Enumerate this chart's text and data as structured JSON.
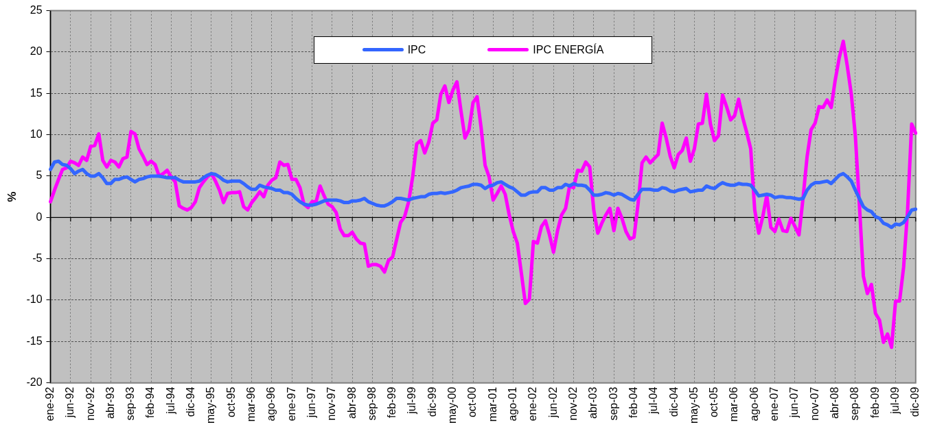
{
  "chart_data": {
    "type": "line",
    "ylabel": "%",
    "categories": [
      "ene-92",
      null,
      null,
      null,
      null,
      "jun-92",
      null,
      null,
      null,
      null,
      "nov-92",
      null,
      null,
      null,
      null,
      "abr-93",
      null,
      null,
      null,
      null,
      "sep-93",
      null,
      null,
      null,
      null,
      "feb-94",
      null,
      null,
      null,
      null,
      "jul-94",
      null,
      null,
      null,
      null,
      "dic-94",
      null,
      null,
      null,
      null,
      "may-95",
      null,
      null,
      null,
      null,
      "oct-95",
      null,
      null,
      null,
      null,
      "mar-96",
      null,
      null,
      null,
      null,
      "ago-96",
      null,
      null,
      null,
      null,
      "ene-97",
      null,
      null,
      null,
      null,
      "jun-97",
      null,
      null,
      null,
      null,
      "nov-97",
      null,
      null,
      null,
      null,
      "abr-98",
      null,
      null,
      null,
      null,
      "sep-98",
      null,
      null,
      null,
      null,
      "feb-99",
      null,
      null,
      null,
      null,
      "jul-99",
      null,
      null,
      null,
      null,
      "dic-99",
      null,
      null,
      null,
      null,
      "may-00",
      null,
      null,
      null,
      null,
      "oct-00",
      null,
      null,
      null,
      null,
      "mar-01",
      null,
      null,
      null,
      null,
      "ago-01",
      null,
      null,
      null,
      null,
      "ene-02",
      null,
      null,
      null,
      null,
      "jun-02",
      null,
      null,
      null,
      null,
      "nov-02",
      null,
      null,
      null,
      null,
      "abr-03",
      null,
      null,
      null,
      null,
      "sep-03",
      null,
      null,
      null,
      null,
      "feb-04",
      null,
      null,
      null,
      null,
      "jul-04",
      null,
      null,
      null,
      null,
      "dic-04",
      null,
      null,
      null,
      null,
      "may-05",
      null,
      null,
      null,
      null,
      "oct-05",
      null,
      null,
      null,
      null,
      "mar-06",
      null,
      null,
      null,
      null,
      "ago-06",
      null,
      null,
      null,
      null,
      "ene-07",
      null,
      null,
      null,
      null,
      "jun-07",
      null,
      null,
      null,
      null,
      "nov-07",
      null,
      null,
      null,
      null,
      "abr-08",
      null,
      null,
      null,
      null,
      "sep-08",
      null,
      null,
      null,
      null,
      "feb-09",
      null,
      null,
      null,
      null,
      "jul-09",
      null,
      null,
      null,
      null,
      "dic-09"
    ],
    "series": [
      {
        "name": "IPC",
        "color": "#3366ff",
        "values": [
          5.8,
          6.7,
          6.8,
          6.4,
          6.3,
          5.9,
          5.3,
          5.6,
          5.8,
          5.3,
          5.0,
          5.0,
          5.3,
          4.8,
          4.1,
          4.1,
          4.6,
          4.6,
          4.8,
          4.9,
          4.6,
          4.3,
          4.6,
          4.7,
          4.9,
          5.0,
          5.0,
          5.0,
          4.9,
          4.8,
          4.8,
          4.8,
          4.5,
          4.3,
          4.3,
          4.3,
          4.3,
          4.4,
          4.8,
          5.1,
          5.3,
          5.2,
          4.9,
          4.5,
          4.3,
          4.4,
          4.4,
          4.4,
          4.1,
          3.7,
          3.4,
          3.4,
          3.9,
          3.7,
          3.6,
          3.5,
          3.3,
          3.3,
          3.0,
          3.0,
          2.8,
          2.3,
          1.9,
          1.6,
          1.5,
          1.5,
          1.6,
          1.8,
          2.0,
          2.1,
          2.1,
          2.1,
          2.0,
          1.8,
          1.8,
          2.0,
          2.0,
          2.1,
          2.3,
          1.9,
          1.7,
          1.5,
          1.4,
          1.4,
          1.6,
          1.9,
          2.3,
          2.3,
          2.2,
          2.1,
          2.3,
          2.4,
          2.5,
          2.5,
          2.8,
          2.9,
          2.9,
          3.0,
          2.9,
          3.0,
          3.1,
          3.3,
          3.6,
          3.7,
          3.8,
          4.0,
          4.0,
          3.9,
          3.5,
          3.8,
          3.9,
          4.2,
          4.3,
          4.0,
          3.7,
          3.5,
          3.1,
          2.7,
          2.7,
          3.0,
          3.1,
          3.1,
          3.6,
          3.6,
          3.3,
          3.3,
          3.6,
          3.6,
          4.0,
          3.8,
          4.1,
          3.9,
          3.9,
          3.8,
          3.3,
          2.7,
          2.7,
          2.8,
          3.0,
          2.9,
          2.7,
          2.9,
          2.8,
          2.5,
          2.2,
          2.1,
          2.8,
          3.4,
          3.4,
          3.4,
          3.3,
          3.3,
          3.6,
          3.5,
          3.2,
          3.1,
          3.3,
          3.4,
          3.5,
          3.1,
          3.2,
          3.3,
          3.3,
          3.8,
          3.6,
          3.5,
          3.9,
          4.2,
          4.0,
          3.9,
          3.9,
          4.1,
          4.0,
          4.0,
          3.9,
          3.3,
          2.6,
          2.7,
          2.8,
          2.7,
          2.4,
          2.5,
          2.5,
          2.4,
          2.4,
          2.3,
          2.2,
          2.3,
          3.3,
          3.9,
          4.2,
          4.2,
          4.3,
          4.4,
          4.1,
          4.6,
          5.1,
          5.3,
          4.9,
          4.4,
          3.3,
          2.3,
          1.3,
          0.9,
          0.7,
          0.1,
          -0.1,
          -0.7,
          -0.9,
          -1.2,
          -0.8,
          -0.9,
          -0.6,
          0.1,
          0.9,
          1.0
        ]
      },
      {
        "name": "IPC ENERGÍA",
        "color": "#ff00ff",
        "values": [
          1.9,
          3.3,
          4.6,
          5.8,
          6.0,
          6.8,
          6.6,
          6.3,
          7.3,
          6.9,
          8.6,
          8.7,
          10.1,
          6.9,
          6.1,
          6.9,
          6.7,
          6.1,
          7.1,
          7.3,
          10.4,
          10.1,
          8.3,
          7.4,
          6.4,
          6.8,
          6.4,
          5.0,
          5.3,
          5.7,
          4.9,
          4.3,
          1.4,
          1.1,
          0.9,
          1.2,
          1.9,
          3.6,
          4.3,
          4.9,
          5.3,
          4.4,
          3.3,
          1.8,
          2.9,
          3.0,
          3.0,
          3.1,
          1.3,
          0.9,
          1.8,
          2.4,
          3.1,
          2.5,
          3.9,
          4.5,
          4.8,
          6.7,
          6.3,
          6.4,
          4.6,
          4.6,
          3.6,
          1.6,
          1.2,
          1.9,
          1.9,
          3.8,
          2.6,
          1.6,
          1.3,
          0.6,
          -1.4,
          -2.2,
          -2.2,
          -1.8,
          -2.6,
          -3.1,
          -3.2,
          -5.9,
          -5.7,
          -5.7,
          -5.9,
          -6.6,
          -5.2,
          -4.8,
          -2.7,
          -0.6,
          0.1,
          1.9,
          4.9,
          8.9,
          9.3,
          7.8,
          9.1,
          11.4,
          11.8,
          14.9,
          15.9,
          13.9,
          15.4,
          16.4,
          12.9,
          9.6,
          10.6,
          13.9,
          14.6,
          10.9,
          6.3,
          4.9,
          2.1,
          2.9,
          3.8,
          2.8,
          0.3,
          -1.7,
          -3.1,
          -6.7,
          -10.4,
          -9.9,
          -2.9,
          -3.1,
          -1.1,
          -0.4,
          -2.1,
          -4.2,
          -1.6,
          0.3,
          1.1,
          3.8,
          3.6,
          5.7,
          5.6,
          6.7,
          6.1,
          0.9,
          -1.9,
          -0.7,
          0.3,
          1.1,
          -1.6,
          1.1,
          -0.1,
          -1.7,
          -2.6,
          -2.4,
          1.6,
          6.6,
          7.3,
          6.6,
          7.1,
          7.6,
          11.4,
          9.6,
          7.4,
          6.0,
          7.6,
          8.1,
          9.6,
          6.8,
          8.3,
          11.3,
          11.4,
          14.9,
          11.3,
          9.3,
          9.9,
          14.8,
          13.4,
          11.8,
          12.3,
          14.3,
          12.1,
          10.3,
          8.3,
          0.9,
          -1.9,
          0.1,
          2.7,
          -1.2,
          -1.7,
          -0.2,
          -1.6,
          -1.7,
          -0.1,
          -1.1,
          -2.1,
          2.3,
          7.3,
          10.6,
          11.4,
          13.4,
          13.3,
          14.2,
          13.3,
          16.6,
          19.3,
          21.3,
          18.3,
          14.9,
          9.9,
          1.6,
          -7.1,
          -9.2,
          -8.1,
          -11.6,
          -12.4,
          -15.1,
          -14.1,
          -15.7,
          -10.1,
          -10.1,
          -6.0,
          1.0,
          11.3,
          10.2
        ]
      }
    ],
    "ylim": [
      -20,
      25
    ],
    "yticks": [
      -20,
      -15,
      -10,
      -5,
      0,
      5,
      10,
      15,
      20,
      25
    ],
    "grid": true,
    "legend": "top"
  }
}
